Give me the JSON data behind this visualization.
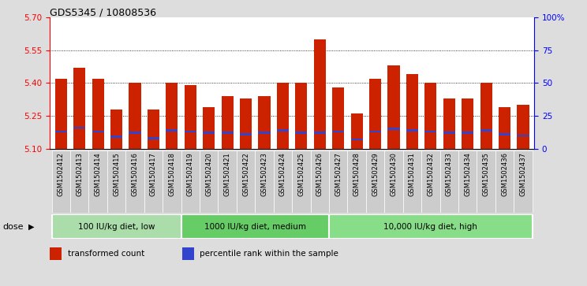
{
  "title": "GDS5345 / 10808536",
  "samples": [
    "GSM1502412",
    "GSM1502413",
    "GSM1502414",
    "GSM1502415",
    "GSM1502416",
    "GSM1502417",
    "GSM1502418",
    "GSM1502419",
    "GSM1502420",
    "GSM1502421",
    "GSM1502422",
    "GSM1502423",
    "GSM1502424",
    "GSM1502425",
    "GSM1502426",
    "GSM1502427",
    "GSM1502428",
    "GSM1502429",
    "GSM1502430",
    "GSM1502431",
    "GSM1502432",
    "GSM1502433",
    "GSM1502434",
    "GSM1502435",
    "GSM1502436",
    "GSM1502437"
  ],
  "bar_values": [
    5.42,
    5.47,
    5.42,
    5.28,
    5.4,
    5.28,
    5.4,
    5.39,
    5.29,
    5.34,
    5.33,
    5.34,
    5.4,
    5.4,
    5.6,
    5.38,
    5.26,
    5.42,
    5.48,
    5.44,
    5.4,
    5.33,
    5.33,
    5.4,
    5.29,
    5.3
  ],
  "percentile_values": [
    13,
    16,
    13,
    9,
    12,
    8,
    14,
    13,
    12,
    12,
    11,
    12,
    14,
    12,
    12,
    13,
    7,
    13,
    15,
    14,
    13,
    12,
    12,
    14,
    11,
    10
  ],
  "ymin": 5.1,
  "ymax": 5.7,
  "yticks": [
    5.1,
    5.25,
    5.4,
    5.55,
    5.7
  ],
  "right_yticks": [
    0,
    25,
    50,
    75,
    100
  ],
  "right_ytick_labels": [
    "0",
    "25",
    "50",
    "75",
    "100%"
  ],
  "grid_values": [
    5.25,
    5.4,
    5.55
  ],
  "bar_color": "#cc2200",
  "blue_color": "#3344cc",
  "bar_width": 0.65,
  "groups": [
    {
      "label": "100 IU/kg diet, low",
      "start": 0,
      "end": 7
    },
    {
      "label": "1000 IU/kg diet, medium",
      "start": 7,
      "end": 15
    },
    {
      "label": "10,000 IU/kg diet, high",
      "start": 15,
      "end": 26
    }
  ],
  "group_colors": [
    "#aaddaa",
    "#66cc66",
    "#88dd88"
  ],
  "dose_label": "dose",
  "legend_items": [
    {
      "label": "transformed count",
      "color": "#cc2200"
    },
    {
      "label": "percentile rank within the sample",
      "color": "#3344cc"
    }
  ],
  "bg_color": "#dddddd",
  "plot_bg": "#ffffff",
  "xlabel_bg": "#cccccc"
}
